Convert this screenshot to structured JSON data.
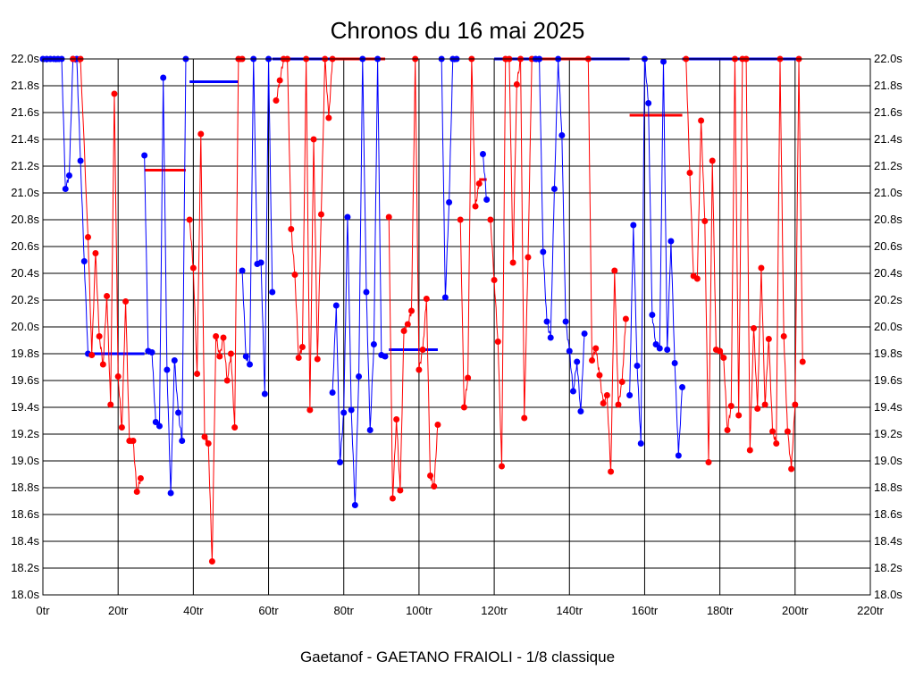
{
  "chart_data": {
    "type": "line",
    "title": "Chronos du 16 mai 2025",
    "subtitle": "Gaetanof - GAETANO FRAIOLI - 1/8 classique",
    "x_unit": "tr",
    "y_unit": "s",
    "xlim": [
      0,
      220
    ],
    "ylim": [
      18.0,
      22.0
    ],
    "x_ticks": [
      0,
      20,
      40,
      60,
      80,
      100,
      120,
      140,
      160,
      180,
      200,
      220
    ],
    "y_ticks": [
      18.0,
      18.2,
      18.4,
      18.6,
      18.8,
      19.0,
      19.2,
      19.4,
      19.6,
      19.8,
      20.0,
      20.2,
      20.4,
      20.6,
      20.8,
      21.0,
      21.2,
      21.4,
      21.6,
      21.8,
      22.0
    ],
    "grid": true,
    "colors": {
      "blue": "#0000ff",
      "red": "#ff0000",
      "grid": "#000000"
    },
    "series": [
      {
        "name": "blue-1",
        "color": "blue",
        "points": [
          [
            0,
            22.0
          ],
          [
            1,
            22.0
          ],
          [
            2,
            22.0
          ],
          [
            3,
            22.0
          ],
          [
            4,
            22.0
          ],
          [
            5,
            22.0
          ],
          [
            6,
            21.03
          ],
          [
            7,
            21.13
          ],
          [
            8,
            22.0
          ],
          [
            9,
            22.0
          ],
          [
            10,
            21.24
          ],
          [
            11,
            20.49
          ],
          [
            12,
            19.8
          ]
        ]
      },
      {
        "name": "red-1",
        "color": "red",
        "points": [
          [
            8,
            22.0
          ],
          [
            10,
            22.0
          ],
          [
            12,
            20.67
          ],
          [
            13,
            19.79
          ],
          [
            14,
            20.55
          ],
          [
            15,
            19.93
          ],
          [
            16,
            19.72
          ],
          [
            17,
            20.23
          ],
          [
            18,
            19.42
          ],
          [
            19,
            21.74
          ],
          [
            20,
            19.63
          ],
          [
            21,
            19.25
          ],
          [
            22,
            20.19
          ],
          [
            23,
            19.15
          ],
          [
            24,
            19.15
          ],
          [
            25,
            18.77
          ],
          [
            26,
            18.87
          ]
        ]
      },
      {
        "name": "blue-2",
        "color": "blue",
        "points": [
          [
            27,
            21.28
          ],
          [
            28,
            19.82
          ],
          [
            29,
            19.81
          ],
          [
            30,
            19.29
          ],
          [
            31,
            19.26
          ],
          [
            32,
            21.86
          ],
          [
            33,
            19.68
          ],
          [
            34,
            18.76
          ],
          [
            35,
            19.75
          ],
          [
            36,
            19.36
          ],
          [
            37,
            19.15
          ],
          [
            38,
            22.0
          ]
        ]
      },
      {
        "name": "red-2",
        "color": "red",
        "points": [
          [
            39,
            20.8
          ],
          [
            40,
            20.44
          ],
          [
            41,
            19.65
          ],
          [
            42,
            21.44
          ],
          [
            43,
            19.18
          ],
          [
            44,
            19.13
          ],
          [
            45,
            18.25
          ],
          [
            46,
            19.93
          ],
          [
            47,
            19.78
          ],
          [
            48,
            19.92
          ],
          [
            49,
            19.6
          ],
          [
            50,
            19.8
          ],
          [
            51,
            19.25
          ],
          [
            52,
            22.0
          ],
          [
            53,
            22.0
          ]
        ]
      },
      {
        "name": "blue-3",
        "color": "blue",
        "points": [
          [
            53,
            20.42
          ],
          [
            54,
            19.78
          ],
          [
            55,
            19.72
          ],
          [
            56,
            22.0
          ],
          [
            57,
            20.47
          ],
          [
            58,
            20.48
          ],
          [
            59,
            19.5
          ],
          [
            60,
            22.0
          ],
          [
            61,
            20.26
          ]
        ]
      },
      {
        "name": "red-3",
        "color": "red",
        "points": [
          [
            62,
            21.69
          ],
          [
            63,
            21.84
          ],
          [
            64,
            22.0
          ],
          [
            65,
            22.0
          ],
          [
            66,
            20.73
          ],
          [
            67,
            20.39
          ],
          [
            68,
            19.77
          ],
          [
            69,
            19.85
          ],
          [
            70,
            22.0
          ],
          [
            71,
            19.38
          ],
          [
            72,
            21.4
          ],
          [
            73,
            19.76
          ],
          [
            74,
            20.84
          ],
          [
            75,
            22.0
          ],
          [
            76,
            21.56
          ],
          [
            77,
            22.0
          ]
        ]
      },
      {
        "name": "blue-4",
        "color": "blue",
        "points": [
          [
            77,
            19.51
          ],
          [
            78,
            20.16
          ],
          [
            79,
            18.99
          ],
          [
            80,
            19.36
          ],
          [
            81,
            20.82
          ],
          [
            82,
            19.38
          ],
          [
            83,
            18.67
          ],
          [
            84,
            19.63
          ],
          [
            85,
            22.0
          ],
          [
            86,
            20.26
          ],
          [
            87,
            19.23
          ],
          [
            88,
            19.87
          ],
          [
            89,
            22.0
          ],
          [
            90,
            19.79
          ],
          [
            91,
            19.78
          ]
        ]
      },
      {
        "name": "red-4",
        "color": "red",
        "points": [
          [
            92,
            20.82
          ],
          [
            93,
            18.72
          ],
          [
            94,
            19.31
          ],
          [
            95,
            18.78
          ],
          [
            96,
            19.97
          ],
          [
            97,
            20.02
          ],
          [
            98,
            20.12
          ],
          [
            99,
            22.0
          ],
          [
            100,
            19.68
          ],
          [
            101,
            19.83
          ],
          [
            102,
            20.21
          ],
          [
            103,
            18.89
          ],
          [
            104,
            18.81
          ],
          [
            105,
            19.27
          ]
        ]
      },
      {
        "name": "blue-5",
        "color": "blue",
        "points": [
          [
            106,
            22.0
          ],
          [
            107,
            20.22
          ],
          [
            108,
            20.93
          ],
          [
            109,
            22.0
          ],
          [
            110,
            22.0
          ]
        ]
      },
      {
        "name": "red-5",
        "color": "red",
        "points": [
          [
            111,
            20.8
          ],
          [
            112,
            19.4
          ],
          [
            113,
            19.62
          ],
          [
            114,
            22.0
          ],
          [
            115,
            20.9
          ],
          [
            116,
            21.07
          ]
        ]
      },
      {
        "name": "blue-6",
        "color": "blue",
        "points": [
          [
            117,
            21.29
          ],
          [
            118,
            20.95
          ]
        ]
      },
      {
        "name": "red-6",
        "color": "red",
        "points": [
          [
            119,
            20.8
          ],
          [
            120,
            20.35
          ],
          [
            121,
            19.89
          ],
          [
            122,
            18.96
          ],
          [
            123,
            22.0
          ],
          [
            124,
            22.0
          ],
          [
            125,
            20.48
          ],
          [
            126,
            21.81
          ],
          [
            127,
            22.0
          ],
          [
            128,
            19.32
          ],
          [
            129,
            20.52
          ],
          [
            130,
            22.0
          ]
        ]
      },
      {
        "name": "blue-7",
        "color": "blue",
        "points": [
          [
            131,
            22.0
          ],
          [
            132,
            22.0
          ],
          [
            133,
            20.56
          ],
          [
            134,
            20.04
          ],
          [
            135,
            19.92
          ],
          [
            136,
            21.03
          ],
          [
            137,
            22.0
          ],
          [
            138,
            21.43
          ],
          [
            139,
            20.04
          ],
          [
            140,
            19.82
          ],
          [
            141,
            19.52
          ],
          [
            142,
            19.74
          ],
          [
            143,
            19.37
          ],
          [
            144,
            19.95
          ]
        ]
      },
      {
        "name": "red-7",
        "color": "red",
        "points": [
          [
            145,
            22.0
          ],
          [
            146,
            19.75
          ],
          [
            147,
            19.84
          ],
          [
            148,
            19.64
          ],
          [
            149,
            19.43
          ],
          [
            150,
            19.49
          ],
          [
            151,
            18.92
          ],
          [
            152,
            20.42
          ],
          [
            153,
            19.42
          ],
          [
            154,
            19.59
          ],
          [
            155,
            20.06
          ]
        ]
      },
      {
        "name": "blue-8",
        "color": "blue",
        "points": [
          [
            156,
            19.49
          ],
          [
            157,
            20.76
          ],
          [
            158,
            19.71
          ],
          [
            159,
            19.13
          ],
          [
            160,
            22.0
          ],
          [
            161,
            21.67
          ],
          [
            162,
            20.09
          ],
          [
            163,
            19.87
          ],
          [
            164,
            19.84
          ],
          [
            165,
            21.98
          ],
          [
            166,
            19.83
          ],
          [
            167,
            20.64
          ],
          [
            168,
            19.73
          ],
          [
            169,
            19.04
          ],
          [
            170,
            19.55
          ]
        ]
      },
      {
        "name": "red-8",
        "color": "red",
        "points": [
          [
            171,
            22.0
          ],
          [
            172,
            21.15
          ],
          [
            173,
            20.38
          ],
          [
            174,
            20.36
          ],
          [
            175,
            21.54
          ],
          [
            176,
            20.79
          ],
          [
            177,
            18.99
          ],
          [
            178,
            21.24
          ],
          [
            179,
            19.83
          ],
          [
            180,
            19.82
          ],
          [
            181,
            19.77
          ],
          [
            182,
            19.23
          ],
          [
            183,
            19.41
          ],
          [
            184,
            22.0
          ],
          [
            185,
            19.34
          ],
          [
            186,
            22.0
          ],
          [
            187,
            22.0
          ],
          [
            188,
            19.08
          ],
          [
            189,
            19.99
          ],
          [
            190,
            19.39
          ],
          [
            191,
            20.44
          ],
          [
            192,
            19.42
          ],
          [
            193,
            19.91
          ],
          [
            194,
            19.22
          ],
          [
            195,
            19.13
          ],
          [
            196,
            22.0
          ],
          [
            197,
            19.93
          ],
          [
            198,
            19.22
          ],
          [
            199,
            18.94
          ],
          [
            200,
            19.42
          ],
          [
            201,
            22.0
          ],
          [
            202,
            19.74
          ]
        ]
      }
    ],
    "averages": [
      {
        "color": "blue",
        "from": 12,
        "to": 27,
        "value": 19.8
      },
      {
        "color": "red",
        "from": 27,
        "to": 38,
        "value": 21.17
      },
      {
        "color": "blue",
        "from": 39,
        "to": 52,
        "value": 21.83
      },
      {
        "color": "blue",
        "from": 61,
        "to": 77,
        "value": 22.0
      },
      {
        "color": "red",
        "from": 77,
        "to": 91,
        "value": 22.0
      },
      {
        "color": "blue",
        "from": 92,
        "to": 105,
        "value": 19.83
      },
      {
        "color": "red",
        "from": 116,
        "to": 118,
        "value": 21.1
      },
      {
        "color": "blue",
        "from": 120,
        "to": 130,
        "value": 22.0
      },
      {
        "color": "red",
        "from": 130,
        "to": 145,
        "value": 22.0
      },
      {
        "color": "blue",
        "from": 145,
        "to": 156,
        "value": 22.0
      },
      {
        "color": "red",
        "from": 156,
        "to": 170,
        "value": 21.58
      },
      {
        "color": "blue",
        "from": 170,
        "to": 201,
        "value": 22.0
      }
    ]
  }
}
